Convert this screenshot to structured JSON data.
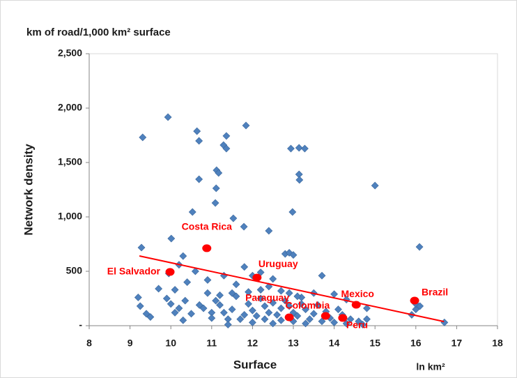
{
  "chart_data": {
    "type": "scatter",
    "title": "km of road/1,000  km² surface",
    "y_axis_label": "Network density",
    "x_axis_label": "Surface",
    "x_unit_label": "ln km²",
    "xlim": [
      8,
      18
    ],
    "xticks": [
      8,
      9,
      10,
      11,
      12,
      13,
      14,
      15,
      16,
      17,
      18
    ],
    "ylim": [
      0,
      2500
    ],
    "yticks": [
      {
        "value": 0,
        "label": "-"
      },
      500,
      {
        "value": 1000,
        "label": "1,000"
      },
      {
        "value": 1500,
        "label": "1,500"
      },
      {
        "value": 2000,
        "label": "2,000"
      },
      {
        "value": 2500,
        "label": "2,500"
      }
    ],
    "grid": false,
    "series": [
      {
        "color": "#4f81bd",
        "x": [
          9.31,
          9.93,
          10.64,
          10.69,
          11.36,
          11.84,
          11.29,
          11.36,
          12.94,
          13.14,
          13.28,
          13.14,
          11.12,
          11.17,
          10.69,
          11.11,
          11.09,
          11.53,
          10.53,
          11.79,
          10.01,
          12.4,
          12.98,
          13.15,
          15.0,
          16.09,
          9.28,
          9.95,
          10.2,
          10.3,
          10.6,
          10.9,
          11.3,
          11.8,
          12.0,
          12.2,
          12.5,
          12.8,
          12.9,
          13.0,
          13.7,
          12.4,
          11.6,
          10.4,
          10.1,
          11.2,
          11.5,
          12.7,
          12.9,
          13.2,
          13.5,
          14.0,
          14.3,
          14.8,
          15.9,
          16.0,
          16.0,
          16.1,
          16.7,
          9.2,
          9.25,
          9.4,
          9.5,
          9.7,
          9.9,
          10.0,
          10.1,
          10.2,
          10.3,
          10.35,
          10.5,
          10.7,
          10.8,
          10.9,
          11.0,
          11.0,
          11.1,
          11.3,
          11.4,
          11.4,
          11.5,
          11.6,
          11.7,
          11.8,
          11.9,
          12.0,
          12.0,
          12.1,
          12.2,
          12.3,
          12.3,
          12.4,
          12.5,
          12.5,
          12.6,
          12.7,
          12.7,
          12.8,
          12.9,
          13.0,
          13.0,
          13.1,
          13.2,
          13.3,
          13.3,
          13.4,
          13.5,
          13.6,
          13.7,
          13.8,
          13.9,
          14.0,
          14.1,
          14.2,
          14.3,
          14.4,
          14.6,
          14.7,
          14.8,
          13.1,
          12.2,
          11.9,
          11.2
        ],
        "values": [
          1731,
          1917,
          1788,
          1699,
          1744,
          1840,
          1660,
          1628,
          1628,
          1635,
          1628,
          1391,
          1429,
          1404,
          1346,
          1263,
          1128,
          987,
          1045,
          910,
          801,
          872,
          1045,
          1340,
          1288,
          724,
          718,
          480,
          560,
          640,
          500,
          420,
          460,
          540,
          460,
          490,
          430,
          660,
          670,
          650,
          460,
          360,
          380,
          400,
          330,
          280,
          300,
          320,
          300,
          260,
          300,
          290,
          240,
          160,
          100,
          150,
          200,
          180,
          30,
          260,
          180,
          110,
          80,
          340,
          250,
          200,
          120,
          160,
          50,
          230,
          110,
          190,
          160,
          300,
          120,
          70,
          230,
          120,
          60,
          10,
          150,
          270,
          60,
          100,
          200,
          140,
          30,
          90,
          250,
          180,
          60,
          120,
          210,
          20,
          100,
          160,
          50,
          230,
          180,
          120,
          40,
          90,
          200,
          150,
          20,
          60,
          110,
          190,
          40,
          130,
          70,
          30,
          150,
          100,
          20,
          60,
          40,
          10,
          60,
          270,
          330,
          310,
          190
        ]
      },
      {
        "color": "#ff0000",
        "x": [
          9.98,
          10.88,
          12.11,
          12.9,
          13.79,
          14.21,
          14.54,
          15.97
        ],
        "values": [
          494,
          712,
          442,
          77,
          90,
          71,
          192,
          231
        ],
        "point_labels": [
          "El Salvador",
          "Costa Rica",
          "Uruguay",
          "Paraguay",
          "Colombia",
          "Peru",
          "Mexico",
          "Brazil"
        ]
      }
    ],
    "trend_line": {
      "color": "#ff0000",
      "x": [
        9.23,
        16.69
      ],
      "values": [
        641,
        38
      ]
    }
  }
}
